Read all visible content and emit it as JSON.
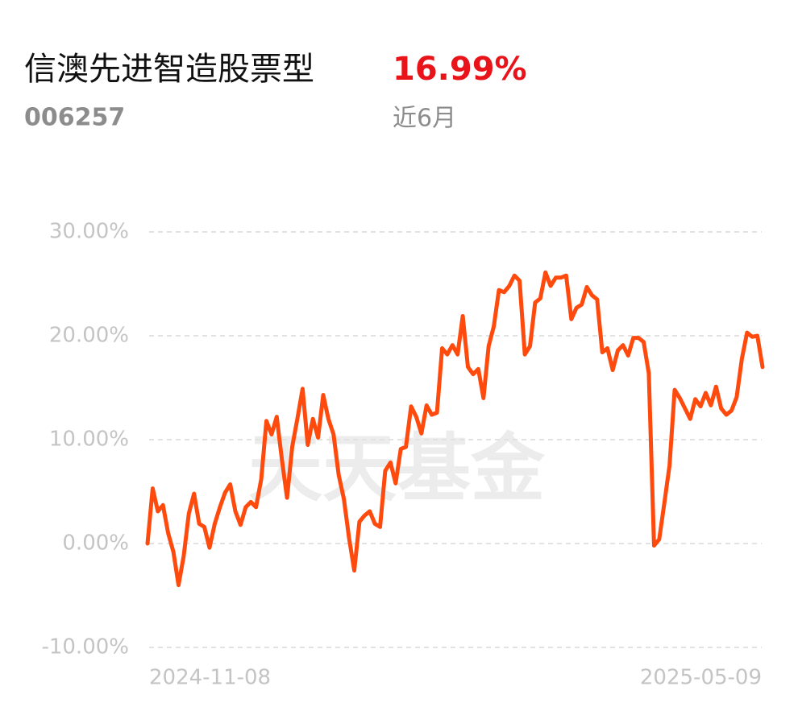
{
  "header": {
    "fund_name": "信澳先进智造股票型",
    "return_label": "16.99%",
    "fund_code": "006257",
    "period": "近6月"
  },
  "chart_data": {
    "type": "line",
    "watermark": "天天基金",
    "categories": [
      "2024-11-08",
      null,
      null,
      null,
      null,
      null,
      null,
      null,
      null,
      null,
      null,
      null,
      null,
      null,
      null,
      null,
      null,
      null,
      null,
      null,
      null,
      null,
      null,
      null,
      null,
      null,
      null,
      null,
      null,
      null,
      null,
      null,
      null,
      null,
      null,
      null,
      null,
      null,
      null,
      null,
      null,
      null,
      null,
      null,
      null,
      null,
      null,
      null,
      null,
      null,
      null,
      null,
      null,
      null,
      null,
      null,
      null,
      null,
      null,
      null,
      null,
      null,
      null,
      null,
      null,
      null,
      null,
      null,
      null,
      null,
      null,
      null,
      null,
      null,
      null,
      null,
      null,
      null,
      null,
      null,
      null,
      null,
      null,
      null,
      null,
      null,
      null,
      null,
      null,
      null,
      null,
      null,
      null,
      null,
      null,
      null,
      null,
      null,
      null,
      null,
      null,
      null,
      null,
      null,
      null,
      null,
      null,
      null,
      null,
      null,
      null,
      null,
      null,
      null,
      null,
      null,
      null,
      null,
      null,
      "2025-05-09"
    ],
    "series": [
      {
        "color": "#ff4a0e",
        "values": [
          0,
          5.3,
          3.1,
          3.7,
          1.0,
          -0.8,
          -4.0,
          -1.2,
          2.9,
          4.8,
          1.9,
          1.6,
          -0.4,
          1.9,
          3.5,
          4.9,
          5.7,
          3.1,
          1.8,
          3.5,
          4.0,
          3.5,
          6.2,
          11.8,
          10.5,
          12.2,
          8.1,
          4.4,
          9.3,
          12.0,
          14.9,
          9.5,
          12.0,
          10.2,
          14.3,
          12.0,
          10.5,
          6.6,
          4.3,
          0.5,
          -2.6,
          2.1,
          2.7,
          3.1,
          1.9,
          1.6,
          7.0,
          7.8,
          5.8,
          9.1,
          9.3,
          13.2,
          12.2,
          10.6,
          13.3,
          12.4,
          12.6,
          18.8,
          18.2,
          19.1,
          18.2,
          21.9,
          17.0,
          16.3,
          16.8,
          14.0,
          19.0,
          20.9,
          24.4,
          24.2,
          24.8,
          25.8,
          25.3,
          18.2,
          19.0,
          23.2,
          23.6,
          26.1,
          24.8,
          25.6,
          25.6,
          25.8,
          21.6,
          22.7,
          23.0,
          24.7,
          23.9,
          23.5,
          18.4,
          18.8,
          16.7,
          18.6,
          19.1,
          18.1,
          19.8,
          19.8,
          19.4,
          16.4,
          -0.2,
          0.4,
          3.9,
          7.5,
          14.8,
          14.0,
          13.0,
          12.0,
          13.9,
          13.2,
          14.5,
          13.3,
          15.1,
          13.0,
          12.4,
          12.8,
          14.1,
          17.8,
          20.3,
          19.9,
          20.0,
          16.99
        ]
      }
    ],
    "ylim": [
      -10,
      30
    ],
    "yticks": [
      {
        "value": -10,
        "label": "-10.00%"
      },
      {
        "value": 0,
        "label": "0.00%"
      },
      {
        "value": 10,
        "label": "10.00%"
      },
      {
        "value": 20,
        "label": "20.00%"
      },
      {
        "value": 30,
        "label": "30.00%"
      }
    ],
    "grid": true
  }
}
